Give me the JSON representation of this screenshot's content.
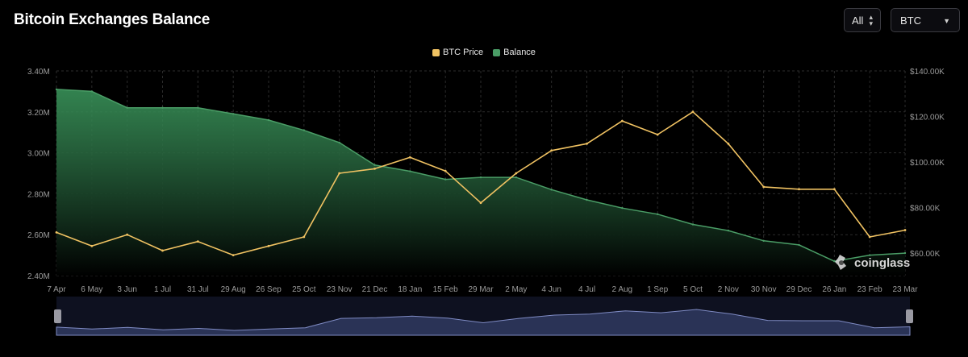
{
  "page": {
    "title": "Bitcoin Exchanges Balance",
    "range_select": {
      "value": "All",
      "icon": "sort-updown-icon"
    },
    "asset_select": {
      "value": "BTC",
      "icon": "caret-down-icon"
    },
    "watermark": "coinglass"
  },
  "colors": {
    "btc_price": "#f0c262",
    "balance_line": "#4a9d66",
    "balance_fill_top": "#3c9a5e",
    "balance_fill_bottom": "#000000",
    "navigator_fill": "#2a3356",
    "navigator_line": "#7f8bc4",
    "grid": "#2b2b2b",
    "axis_text": "#9a9a9a"
  },
  "chart_data": {
    "type": "line",
    "title": "Bitcoin Exchanges Balance",
    "legend": {
      "position": "top-center",
      "entries": [
        "BTC Price",
        "Balance"
      ]
    },
    "grid": true,
    "x_tick_labels": [
      "7 Apr",
      "6 May",
      "3 Jun",
      "1 Jul",
      "31 Jul",
      "29 Aug",
      "26 Sep",
      "25 Oct",
      "23 Nov",
      "21 Dec",
      "18 Jan",
      "15 Feb",
      "29 Mar",
      "2 May",
      "4 Jun",
      "4 Jul",
      "2 Aug",
      "1 Sep",
      "5 Oct",
      "2 Nov",
      "30 Nov",
      "29 Dec",
      "26 Jan",
      "23 Feb",
      "23 Mar"
    ],
    "y_left": {
      "ylim": [
        2400000,
        3400000
      ],
      "ticks": [
        "2.40M",
        "2.60M",
        "2.80M",
        "3.00M",
        "3.20M",
        "3.40M"
      ]
    },
    "y_right": {
      "ylim": [
        50000,
        140000
      ],
      "ticks": [
        "$60.00K",
        "$80.00K",
        "$100.00K",
        "$120.00K",
        "$140.00K"
      ]
    },
    "series": [
      {
        "name": "Balance",
        "axis": "left",
        "x": [
          "7 Apr",
          "6 May",
          "3 Jun",
          "1 Jul",
          "31 Jul",
          "29 Aug",
          "26 Sep",
          "25 Oct",
          "23 Nov",
          "21 Dec",
          "18 Jan",
          "15 Feb",
          "29 Mar",
          "2 May",
          "4 Jun",
          "4 Jul",
          "2 Aug",
          "1 Sep",
          "5 Oct",
          "2 Nov",
          "30 Nov",
          "29 Dec",
          "26 Jan",
          "23 Feb",
          "23 Mar"
        ],
        "values": [
          3310000,
          3300000,
          3220000,
          3220000,
          3220000,
          3190000,
          3160000,
          3110000,
          3050000,
          2940000,
          2910000,
          2870000,
          2880000,
          2880000,
          2820000,
          2770000,
          2730000,
          2700000,
          2650000,
          2620000,
          2570000,
          2550000,
          2470000,
          2500000,
          2510000
        ]
      },
      {
        "name": "BTC Price",
        "axis": "right",
        "x": [
          "7 Apr",
          "6 May",
          "3 Jun",
          "1 Jul",
          "31 Jul",
          "29 Aug",
          "26 Sep",
          "25 Oct",
          "23 Nov",
          "21 Dec",
          "18 Jan",
          "15 Feb",
          "29 Mar",
          "2 May",
          "4 Jun",
          "4 Jul",
          "2 Aug",
          "1 Sep",
          "5 Oct",
          "2 Nov",
          "30 Nov",
          "29 Dec",
          "26 Jan",
          "23 Feb",
          "23 Mar"
        ],
        "values": [
          69000,
          63000,
          68000,
          61000,
          65000,
          59000,
          63000,
          67000,
          95000,
          97000,
          102000,
          96000,
          82000,
          95000,
          105000,
          108000,
          118000,
          112000,
          122000,
          108000,
          89000,
          88000,
          88000,
          67000,
          70000
        ]
      }
    ]
  }
}
